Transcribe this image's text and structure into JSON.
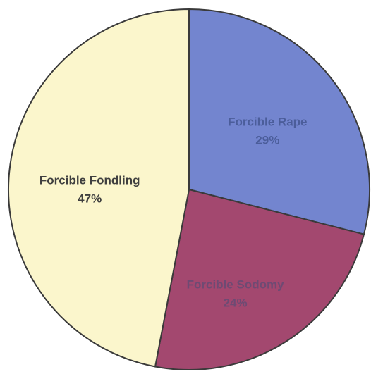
{
  "chart_data": {
    "type": "pie",
    "title": "",
    "slices": [
      {
        "label": "Forcible Rape",
        "percent_label": "29%",
        "value": 29,
        "color": "#7385cf",
        "text_color": "#4b5d9a"
      },
      {
        "label": "Forcible Sodomy",
        "percent_label": "24%",
        "value": 24,
        "color": "#a3486f",
        "text_color": "#6e4a73"
      },
      {
        "label": "Forcible Fondling",
        "percent_label": "47%",
        "value": 47,
        "color": "#fbf6cc",
        "text_color": "#3f3f3f"
      }
    ],
    "start_angle_deg": 0,
    "direction": "clockwise",
    "legend": "none"
  }
}
